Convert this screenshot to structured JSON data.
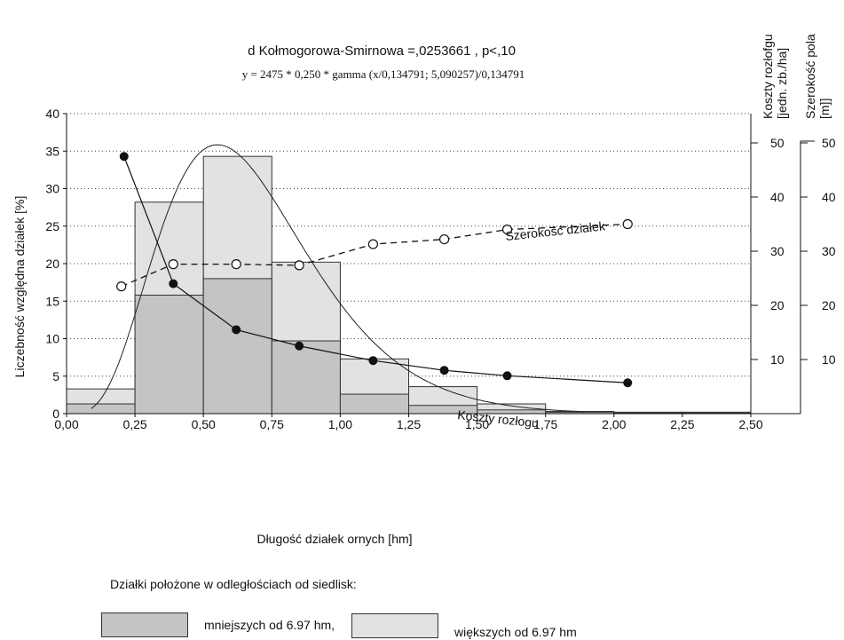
{
  "chart_data": {
    "type": "bar",
    "title": "d Kołmogorowa-Smirnowa =,0253661 , p<,10",
    "subtitle": "y = 2475 * 0,250 * gamma (x/0,134791; 5,090257)/0,134791",
    "xlabel": "Długość działek ornych [hm]",
    "ylabel": "Liczebność względna działek [%]",
    "xlim": [
      0,
      2.5
    ],
    "ylim": [
      0,
      40
    ],
    "x_ticks": [
      "0,00",
      "0,25",
      "0,50",
      "0,75",
      "1,00",
      "1,25",
      "1,50",
      "1,75",
      "2,00",
      "2,25",
      "2,50"
    ],
    "y_ticks": [
      "0",
      "5",
      "10",
      "15",
      "20",
      "25",
      "30",
      "35",
      "40"
    ],
    "grid": "horizontal dotted",
    "bin_edges": [
      0,
      0.25,
      0.5,
      0.75,
      1.0,
      1.25,
      1.5,
      1.75,
      2.0,
      2.25,
      2.5
    ],
    "series": [
      {
        "name": "większych od 6.97 hm",
        "color": "#e2e2e2",
        "values": [
          3.3,
          28.2,
          34.3,
          20.2,
          7.3,
          3.6,
          1.3,
          0.3,
          0.2,
          0.2
        ]
      },
      {
        "name": "mniejszych od 6.97 hm,",
        "color": "#c4c4c4",
        "values": [
          1.3,
          15.8,
          18.0,
          9.7,
          2.6,
          1.1,
          0.5,
          0.2,
          0.1,
          0.1
        ]
      }
    ],
    "gamma_fit": {
      "n": 2475,
      "bin_width": 0.25,
      "scale": 0.134791,
      "shape": 5.090257
    },
    "secondary_series": [
      {
        "name": "Koszty rozłogu",
        "axis": "cost",
        "marker": "filled-circle",
        "line": "solid",
        "x": [
          0.21,
          0.39,
          0.62,
          0.85,
          1.12,
          1.38,
          1.61,
          2.05
        ],
        "y": [
          47.5,
          24.0,
          15.5,
          12.5,
          9.8,
          8.0,
          7.0,
          5.7
        ]
      },
      {
        "name": "Szerokość działek",
        "axis": "width",
        "marker": "open-circle",
        "line": "dashed",
        "x": [
          0.2,
          0.39,
          0.62,
          0.85,
          1.12,
          1.38,
          1.61,
          2.05
        ],
        "y": [
          23.5,
          27.6,
          27.6,
          27.4,
          31.3,
          32.2,
          34.0,
          35.0
        ]
      }
    ],
    "right_axis_cost": {
      "label": "Koszty rozłofgu [jedn. zb./ha]",
      "label_line1": "Koszty rozłofgu",
      "label_line2": "[jedn. zb./ha]",
      "range": [
        0,
        50
      ],
      "ticks": [
        "10",
        "20",
        "30",
        "40",
        "50"
      ]
    },
    "right_axis_width": {
      "label": "Szerokość pola [m]]",
      "label_line1": "Szerokość  pola",
      "label_line2": "[m]]",
      "range": [
        0,
        50
      ],
      "ticks": [
        "10",
        "20",
        "30",
        "40",
        "50"
      ]
    },
    "annotations": {
      "width_curve": "Szerokość działek",
      "cost_curve": "Koszty rozłogu"
    }
  },
  "legend": {
    "title": "Działki położone w odległościach od siedlisk:",
    "items": [
      {
        "label": "mniejszych od 6.97 hm,",
        "color": "#c4c4c4"
      },
      {
        "label": "większych od 6.97 hm",
        "color": "#e2e2e2"
      }
    ]
  }
}
